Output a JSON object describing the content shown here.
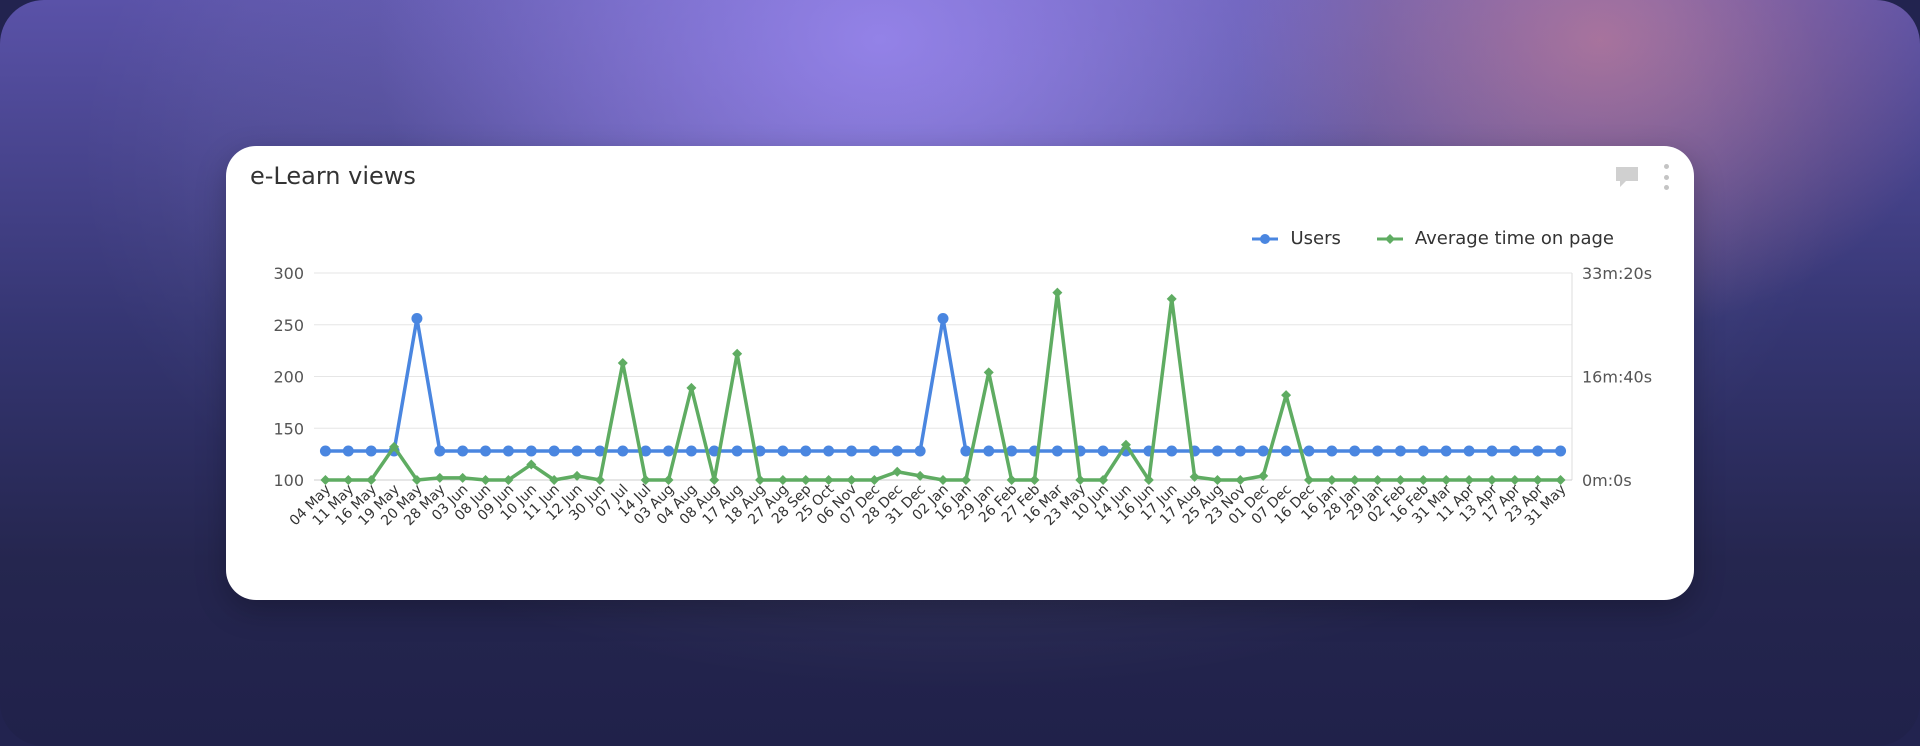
{
  "card": {
    "title": "e-Learn views"
  },
  "icons": {
    "comment": "comment-icon",
    "menu": "kebab-menu-icon"
  },
  "colors": {
    "users": "#4a86e0",
    "avg_time": "#5fac62",
    "grid": "#e6e6e6"
  },
  "chart_data": {
    "type": "line",
    "title": "e-Learn views",
    "legend_position": "top-right",
    "grid": true,
    "categories": [
      "04 May",
      "11 May",
      "16 May",
      "19 May",
      "20 May",
      "28 May",
      "03 Jun",
      "08 Jun",
      "09 Jun",
      "10 Jun",
      "11 Jun",
      "12 Jun",
      "30 Jun",
      "07 Jul",
      "14 Jul",
      "03 Aug",
      "04 Aug",
      "08 Aug",
      "17 Aug",
      "18 Aug",
      "27 Aug",
      "28 Sep",
      "25 Oct",
      "06 Nov",
      "07 Dec",
      "28 Dec",
      "31 Dec",
      "02 Jan",
      "16 Jan",
      "29 Jan",
      "26 Feb",
      "27 Feb",
      "16 Mar",
      "23 May",
      "10 Jun",
      "14 Jun",
      "16 Jun",
      "17 Jun",
      "17 Aug",
      "25 Aug",
      "23 Nov",
      "01 Dec",
      "07 Dec",
      "16 Dec",
      "16 Jan",
      "28 Jan",
      "29 Jan",
      "02 Feb",
      "16 Feb",
      "31 Mar",
      "11 Apr",
      "13 Apr",
      "17 Apr",
      "23 Apr",
      "31 May"
    ],
    "y_left": {
      "ticks": [
        "300",
        "250",
        "200",
        "150",
        "100"
      ],
      "ylim": [
        100,
        300
      ]
    },
    "y_right": {
      "ticks": [
        "33m:20s",
        "16m:40s",
        "0m:0s"
      ],
      "ylim_seconds": [
        0,
        2000
      ]
    },
    "series": [
      {
        "name": "Users",
        "axis": "left",
        "values": [
          128,
          128,
          128,
          128,
          256,
          128,
          128,
          128,
          128,
          128,
          128,
          128,
          128,
          128,
          128,
          128,
          128,
          128,
          128,
          128,
          128,
          128,
          128,
          128,
          128,
          128,
          128,
          256,
          128,
          128,
          128,
          128,
          128,
          128,
          128,
          128,
          128,
          128,
          128,
          128,
          128,
          128,
          128,
          128,
          128,
          128,
          128,
          128,
          128,
          128,
          128,
          128,
          128,
          128,
          128
        ]
      },
      {
        "name": "Average time on page",
        "axis": "right",
        "values_seconds": [
          0,
          0,
          0,
          320,
          0,
          20,
          20,
          0,
          0,
          150,
          0,
          40,
          0,
          1130,
          0,
          0,
          890,
          0,
          1220,
          0,
          0,
          0,
          0,
          0,
          0,
          80,
          40,
          0,
          0,
          1040,
          0,
          0,
          1810,
          0,
          0,
          340,
          0,
          1750,
          30,
          0,
          0,
          40,
          820,
          0,
          0,
          0,
          0,
          0,
          0,
          0,
          0,
          0,
          0,
          0,
          0
        ]
      }
    ]
  }
}
